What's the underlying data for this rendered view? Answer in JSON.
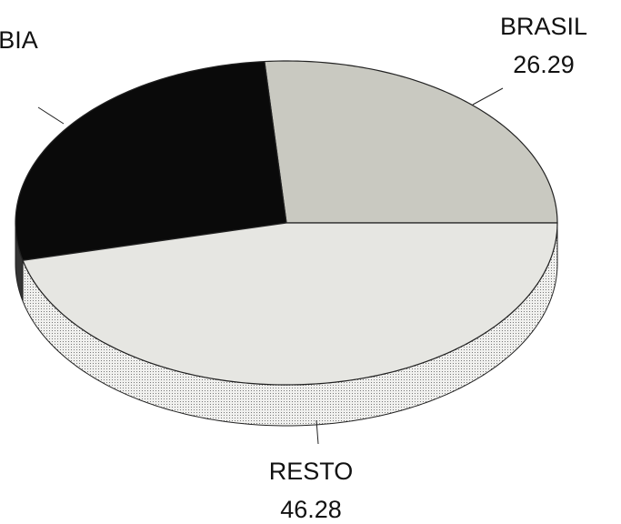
{
  "chart_data": {
    "type": "pie3d",
    "categories": [
      "BRASIL",
      "BIA",
      "RESTO"
    ],
    "values": [
      26.29,
      27.43,
      46.28
    ],
    "value_labels": [
      "26.29",
      null,
      "46.28"
    ],
    "colors": [
      "#c9c9c1",
      "#0a0a0a",
      "#e6e6e2"
    ]
  }
}
